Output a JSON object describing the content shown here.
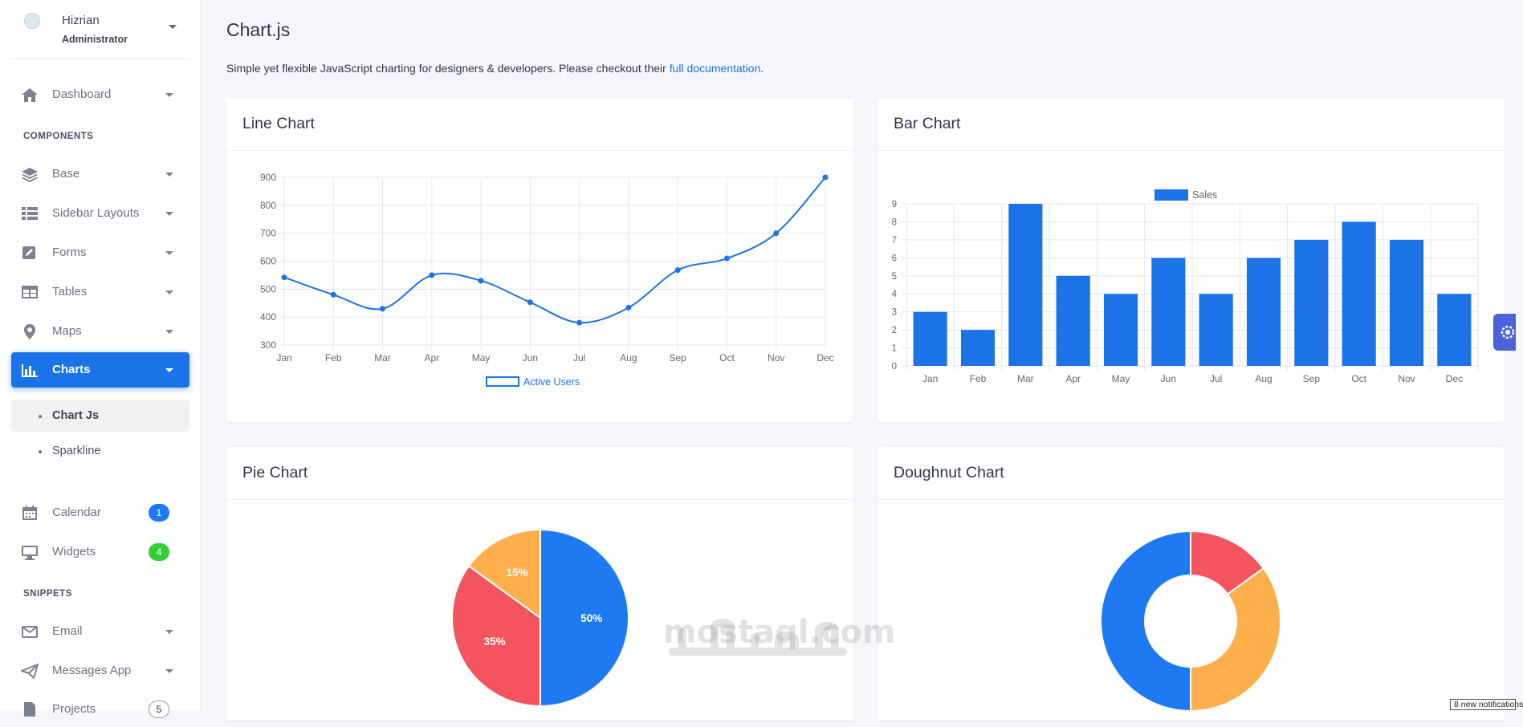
{
  "user": {
    "name": "Hizrian",
    "role": "Administrator"
  },
  "sidebar": {
    "dashboard": "Dashboard",
    "components_title": "COMPONENTS",
    "base": "Base",
    "sidebar_layouts": "Sidebar Layouts",
    "forms": "Forms",
    "tables": "Tables",
    "maps": "Maps",
    "charts": "Charts",
    "chart_js": "Chart Js",
    "sparkline": "Sparkline",
    "calendar": "Calendar",
    "calendar_badge": "1",
    "widgets": "Widgets",
    "widgets_badge": "4",
    "snippets_title": "SNIPPETS",
    "email": "Email",
    "messages_app": "Messages App",
    "projects": "Projects",
    "projects_badge": "5"
  },
  "page": {
    "title": "Chart.js",
    "desc_text": "Simple yet flexible JavaScript charting for designers & developers. Please checkout their ",
    "desc_link": "full documentation",
    "desc_end": "."
  },
  "cards": {
    "line": "Line Chart",
    "bar": "Bar Chart",
    "pie": "Pie Chart",
    "doughnut": "Doughnut Chart"
  },
  "watermark": "mostaql.com",
  "notification": "8 new notifications",
  "colors": {
    "primary": "#1b73e8",
    "red": "#f3545d",
    "orange": "#fdaf4b",
    "blue_badge": "#1d7af3",
    "green_badge": "#31ce36"
  },
  "chart_data": [
    {
      "type": "line",
      "categories": [
        "Jan",
        "Feb",
        "Mar",
        "Apr",
        "May",
        "Jun",
        "Jul",
        "Aug",
        "Sep",
        "Oct",
        "Nov",
        "Dec"
      ],
      "series": [
        {
          "name": "Active Users",
          "values": [
            542,
            480,
            430,
            550,
            530,
            453,
            380,
            434,
            568,
            610,
            700,
            900
          ]
        }
      ],
      "ylim": [
        300,
        900
      ],
      "yticks": [
        300,
        400,
        500,
        600,
        700,
        800,
        900
      ],
      "legend": "bottom",
      "grid": true
    },
    {
      "type": "bar",
      "categories": [
        "Jan",
        "Feb",
        "Mar",
        "Apr",
        "May",
        "Jun",
        "Jul",
        "Aug",
        "Sep",
        "Oct",
        "Nov",
        "Dec"
      ],
      "series": [
        {
          "name": "Sales",
          "values": [
            3,
            2,
            9,
            5,
            4,
            6,
            4,
            6,
            7,
            8,
            7,
            4
          ]
        }
      ],
      "ylim": [
        0,
        9
      ],
      "yticks": [
        0,
        1,
        2,
        3,
        4,
        5,
        6,
        7,
        8,
        9
      ],
      "legend": "top",
      "grid": true
    },
    {
      "type": "pie",
      "slices": [
        {
          "value": 50,
          "label": "50%",
          "color": "#1d7af3"
        },
        {
          "value": 35,
          "label": "35%",
          "color": "#f3545d"
        },
        {
          "value": 15,
          "label": "15%",
          "color": "#fdaf4b"
        }
      ]
    },
    {
      "type": "pie",
      "variant": "doughnut",
      "slices": [
        {
          "value": 15,
          "color": "#f3545d"
        },
        {
          "value": 35,
          "color": "#fdaf4b"
        },
        {
          "value": 50,
          "color": "#1d7af3"
        }
      ]
    }
  ]
}
